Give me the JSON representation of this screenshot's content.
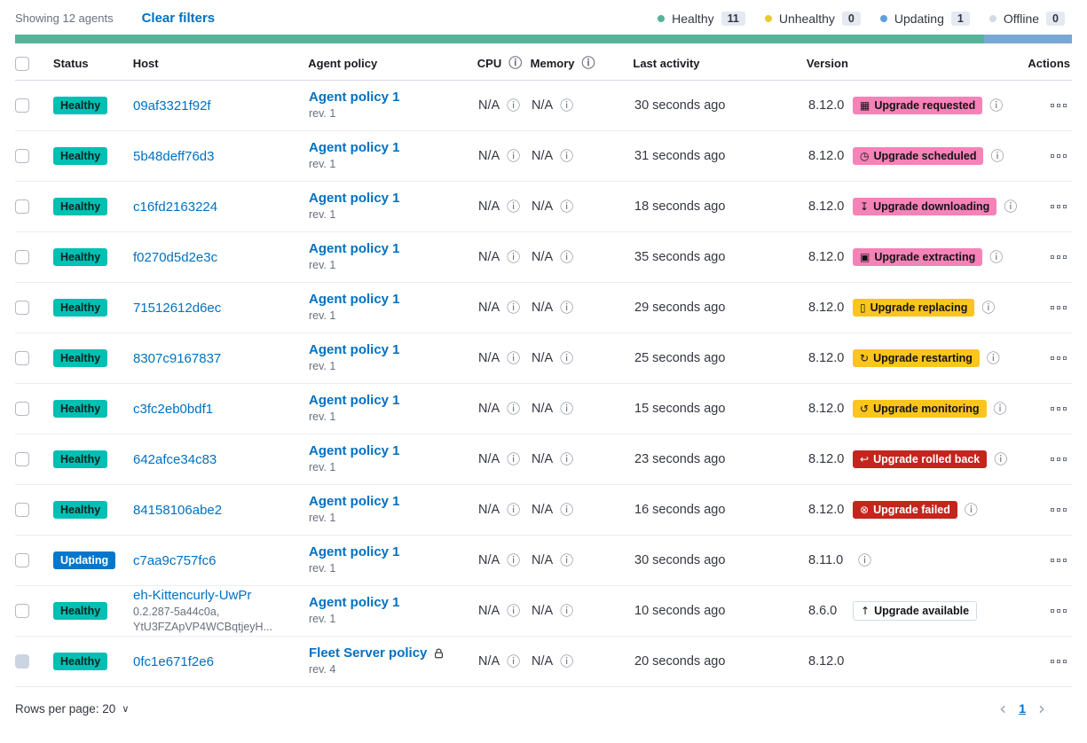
{
  "header": {
    "showing_text": "Showing 12 agents",
    "clear_filters_label": "Clear filters",
    "legend": [
      {
        "label": "Healthy",
        "count": "11",
        "color": "#54B399"
      },
      {
        "label": "Unhealthy",
        "count": "0",
        "color": "#E7C930"
      },
      {
        "label": "Updating",
        "count": "1",
        "color": "#5E9FDC"
      },
      {
        "label": "Offline",
        "count": "0",
        "color": "#D3DAE6"
      }
    ],
    "health_bar": {
      "segments": [
        {
          "status": "healthy",
          "color": "#54B399",
          "percent": 91.7
        },
        {
          "status": "updating",
          "color": "#79A7D4",
          "percent": 8.3
        }
      ]
    }
  },
  "icons": {
    "info": "ⓘ",
    "rows_chevron": "∨",
    "prev": "‹",
    "next": "›"
  },
  "table": {
    "columns": {
      "status": "Status",
      "host": "Host",
      "policy": "Agent policy",
      "cpu": "CPU",
      "memory": "Memory",
      "last_activity": "Last activity",
      "version": "Version",
      "actions": "Actions"
    }
  },
  "agents": [
    {
      "status": "Healthy",
      "status_tone": "healthy",
      "host": "09af3321f92f",
      "host_sub": "",
      "policy": "Agent policy 1",
      "policy_rev": "rev. 1",
      "policy_locked": false,
      "cpu": "N/A",
      "memory": "N/A",
      "last_activity": "30 seconds ago",
      "version": "8.12.0",
      "upgrade": {
        "label": "Upgrade requested",
        "tone": "pink",
        "icon": "calendar",
        "glyph": "▦"
      },
      "version_info": true,
      "checkbox_disabled": false
    },
    {
      "status": "Healthy",
      "status_tone": "healthy",
      "host": "5b48deff76d3",
      "host_sub": "",
      "policy": "Agent policy 1",
      "policy_rev": "rev. 1",
      "policy_locked": false,
      "cpu": "N/A",
      "memory": "N/A",
      "last_activity": "31 seconds ago",
      "version": "8.12.0",
      "upgrade": {
        "label": "Upgrade scheduled",
        "tone": "pink",
        "icon": "clock",
        "glyph": "◷"
      },
      "version_info": true,
      "checkbox_disabled": false
    },
    {
      "status": "Healthy",
      "status_tone": "healthy",
      "host": "c16fd2163224",
      "host_sub": "",
      "policy": "Agent policy 1",
      "policy_rev": "rev. 1",
      "policy_locked": false,
      "cpu": "N/A",
      "memory": "N/A",
      "last_activity": "18 seconds ago",
      "version": "8.12.0",
      "upgrade": {
        "label": "Upgrade downloading",
        "tone": "pink",
        "icon": "download",
        "glyph": "↧"
      },
      "version_info": true,
      "checkbox_disabled": false
    },
    {
      "status": "Healthy",
      "status_tone": "healthy",
      "host": "f0270d5d2e3c",
      "host_sub": "",
      "policy": "Agent policy 1",
      "policy_rev": "rev. 1",
      "policy_locked": false,
      "cpu": "N/A",
      "memory": "N/A",
      "last_activity": "35 seconds ago",
      "version": "8.12.0",
      "upgrade": {
        "label": "Upgrade extracting",
        "tone": "pink",
        "icon": "package",
        "glyph": "▣"
      },
      "version_info": true,
      "checkbox_disabled": false
    },
    {
      "status": "Healthy",
      "status_tone": "healthy",
      "host": "71512612d6ec",
      "host_sub": "",
      "policy": "Agent policy 1",
      "policy_rev": "rev. 1",
      "policy_locked": false,
      "cpu": "N/A",
      "memory": "N/A",
      "last_activity": "29 seconds ago",
      "version": "8.12.0",
      "upgrade": {
        "label": "Upgrade replacing",
        "tone": "warning",
        "icon": "document",
        "glyph": "▯"
      },
      "version_info": true,
      "checkbox_disabled": false
    },
    {
      "status": "Healthy",
      "status_tone": "healthy",
      "host": "8307c9167837",
      "host_sub": "",
      "policy": "Agent policy 1",
      "policy_rev": "rev. 1",
      "policy_locked": false,
      "cpu": "N/A",
      "memory": "N/A",
      "last_activity": "25 seconds ago",
      "version": "8.12.0",
      "upgrade": {
        "label": "Upgrade restarting",
        "tone": "warning",
        "icon": "refresh",
        "glyph": "↻"
      },
      "version_info": true,
      "checkbox_disabled": false
    },
    {
      "status": "Healthy",
      "status_tone": "healthy",
      "host": "c3fc2eb0bdf1",
      "host_sub": "",
      "policy": "Agent policy 1",
      "policy_rev": "rev. 1",
      "policy_locked": false,
      "cpu": "N/A",
      "memory": "N/A",
      "last_activity": "15 seconds ago",
      "version": "8.12.0",
      "upgrade": {
        "label": "Upgrade monitoring",
        "tone": "warning",
        "icon": "inspect",
        "glyph": "↺"
      },
      "version_info": true,
      "checkbox_disabled": false
    },
    {
      "status": "Healthy",
      "status_tone": "healthy",
      "host": "642afce34c83",
      "host_sub": "",
      "policy": "Agent policy 1",
      "policy_rev": "rev. 1",
      "policy_locked": false,
      "cpu": "N/A",
      "memory": "N/A",
      "last_activity": "23 seconds ago",
      "version": "8.12.0",
      "upgrade": {
        "label": "Upgrade rolled back",
        "tone": "danger",
        "icon": "return-arrow",
        "glyph": "↩"
      },
      "version_info": true,
      "checkbox_disabled": false
    },
    {
      "status": "Healthy",
      "status_tone": "healthy",
      "host": "84158106abe2",
      "host_sub": "",
      "policy": "Agent policy 1",
      "policy_rev": "rev. 1",
      "policy_locked": false,
      "cpu": "N/A",
      "memory": "N/A",
      "last_activity": "16 seconds ago",
      "version": "8.12.0",
      "upgrade": {
        "label": "Upgrade failed",
        "tone": "danger",
        "icon": "cross-in-circle",
        "glyph": "⊗"
      },
      "version_info": true,
      "checkbox_disabled": false
    },
    {
      "status": "Updating",
      "status_tone": "updating",
      "host": "c7aa9c757fc6",
      "host_sub": "",
      "policy": "Agent policy 1",
      "policy_rev": "rev. 1",
      "policy_locked": false,
      "cpu": "N/A",
      "memory": "N/A",
      "last_activity": "30 seconds ago",
      "version": "8.11.0",
      "upgrade": {
        "label": "",
        "tone": "none",
        "icon": "",
        "glyph": ""
      },
      "version_info": true,
      "checkbox_disabled": false
    },
    {
      "status": "Healthy",
      "status_tone": "healthy",
      "host": "eh-Kittencurly-UwPr",
      "host_sub": "0.2.287-5a44c0a,\nYtU3FZApVP4WCBqtjeyH...",
      "policy": "Agent policy 1",
      "policy_rev": "rev. 1",
      "policy_locked": false,
      "cpu": "N/A",
      "memory": "N/A",
      "last_activity": "10 seconds ago",
      "version": "8.6.0",
      "upgrade": {
        "label": "Upgrade available",
        "tone": "hollow",
        "icon": "arrow-up",
        "glyph": "↑"
      },
      "version_info": false,
      "checkbox_disabled": false
    },
    {
      "status": "Healthy",
      "status_tone": "healthy",
      "host": "0fc1e671f2e6",
      "host_sub": "",
      "policy": "Fleet Server policy",
      "policy_rev": "rev. 4",
      "policy_locked": true,
      "cpu": "N/A",
      "memory": "N/A",
      "last_activity": "20 seconds ago",
      "version": "8.12.0",
      "upgrade": {
        "label": "",
        "tone": "none",
        "icon": "",
        "glyph": ""
      },
      "version_info": false,
      "checkbox_disabled": true
    }
  ],
  "footer": {
    "rows_per_page_label": "Rows per page: 20",
    "page": "1"
  }
}
